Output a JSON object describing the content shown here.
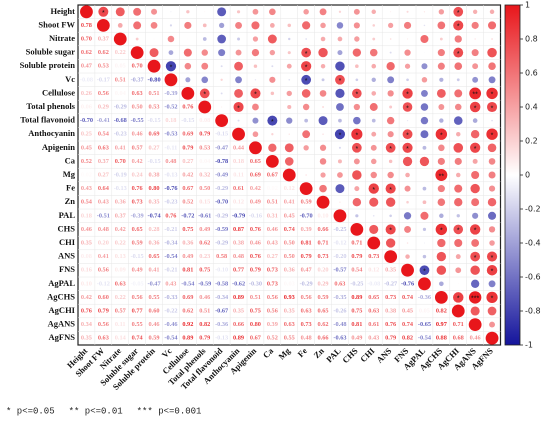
{
  "chart_data": {
    "type": "correlation",
    "variables": [
      "Height",
      "Shoot FW",
      "Nitrate",
      "Soluble sugar",
      "Soluble protein",
      "Vc",
      "Cellulose",
      "Total phenols",
      "Total flavonoid",
      "Anthocyanin",
      "Apigenin",
      "Ca",
      "Mg",
      "Fe",
      "Zn",
      "PAL",
      "CHS",
      "CHI",
      "ANS",
      "FNS",
      "AgPAL",
      "AgCHS",
      "AgCHI",
      "AgANS",
      "AgFNS"
    ],
    "values": [
      [],
      [
        0.78
      ],
      [
        0.7,
        0.37
      ],
      [
        0.62,
        0.62,
        0.22
      ],
      [
        0.47,
        0.53,
        0.05,
        0.7
      ],
      [
        -0.08,
        -0.17,
        0.51,
        -0.37,
        -0.8
      ],
      [
        0.26,
        0.56,
        0.04,
        0.63,
        0.51,
        -0.39
      ],
      [
        0.06,
        0.29,
        -0.29,
        0.5,
        0.53,
        -0.52,
        0.76
      ],
      [
        -0.7,
        -0.41,
        -0.68,
        -0.55,
        -0.15,
        0.18,
        -0.15,
        0.08
      ],
      [
        0.25,
        0.54,
        -0.23,
        0.46,
        0.69,
        -0.53,
        0.69,
        0.79,
        -0.15
      ],
      [
        0.45,
        0.63,
        0.41,
        0.57,
        0.27,
        -0.11,
        0.79,
        0.53,
        -0.47,
        0.44
      ],
      [
        0.52,
        0.37,
        0.7,
        0.42,
        -0.15,
        0.48,
        0.27,
        0.04,
        -0.78,
        0.18,
        0.65
      ],
      [
        0.02,
        0.27,
        -0.19,
        0.24,
        0.38,
        -0.13,
        0.42,
        0.32,
        -0.49,
        0.11,
        0.69,
        0.67
      ],
      [
        0.43,
        0.64,
        -0.13,
        0.76,
        0.8,
        -0.76,
        0.67,
        0.5,
        -0.29,
        0.61,
        0.42,
        0.02,
        0.12
      ],
      [
        0.54,
        0.43,
        0.36,
        0.73,
        0.35,
        -0.23,
        0.52,
        0.15,
        -0.7,
        0.12,
        0.49,
        0.51,
        0.41,
        0.59
      ],
      [
        0.18,
        -0.51,
        0.37,
        -0.39,
        -0.74,
        0.76,
        -0.72,
        -0.61,
        -0.29,
        -0.79,
        -0.16,
        0.31,
        0.45,
        -0.7,
        0.1
      ],
      [
        0.46,
        0.48,
        0.42,
        0.65,
        0.28,
        -0.21,
        0.75,
        0.49,
        -0.59,
        0.87,
        0.76,
        0.46,
        0.74,
        0.39,
        0.66,
        -0.25
      ],
      [
        0.35,
        0.2,
        0.22,
        0.59,
        0.36,
        -0.34,
        0.36,
        0.62,
        -0.29,
        0.38,
        0.46,
        0.43,
        0.5,
        0.81,
        0.71,
        -0.12,
        0.71
      ],
      [
        0.08,
        0.41,
        0.13,
        -0.15,
        0.65,
        -0.54,
        0.49,
        0.23,
        0.58,
        0.48,
        0.76,
        0.27,
        0.5,
        0.79,
        0.73,
        -0.2,
        0.79,
        0.73
      ],
      [
        0.16,
        0.56,
        0.09,
        0.49,
        0.41,
        -0.21,
        0.81,
        0.75,
        -0.1,
        0.77,
        0.79,
        0.73,
        0.36,
        0.47,
        0.2,
        -0.57,
        0.54,
        0.12,
        0.35
      ],
      [
        0.1,
        -0.12,
        0.63,
        -0.05,
        -0.47,
        0.43,
        -0.54,
        -0.59,
        -0.58,
        -0.62,
        -0.3,
        0.73,
        0.03,
        -0.29,
        0.29,
        0.63,
        -0.25,
        -0.08,
        -0.27,
        -0.76
      ],
      [
        0.42,
        0.6,
        0.22,
        0.56,
        0.55,
        -0.33,
        0.69,
        0.46,
        -0.34,
        0.89,
        0.51,
        0.56,
        0.93,
        0.56,
        0.59,
        -0.35,
        0.89,
        0.65,
        0.73,
        0.74,
        -0.36
      ],
      [
        0.76,
        0.79,
        0.57,
        0.77,
        0.6,
        -0.22,
        0.62,
        0.51,
        -0.67,
        0.35,
        0.75,
        0.56,
        0.35,
        0.63,
        0.65,
        -0.26,
        0.75,
        0.63,
        0.38,
        0.45,
        0.05,
        0.82
      ],
      [
        0.34,
        0.56,
        0.11,
        0.55,
        0.46,
        -0.46,
        0.92,
        0.82,
        -0.36,
        0.66,
        0.8,
        0.39,
        0.63,
        0.73,
        0.62,
        -0.48,
        0.81,
        0.61,
        0.76,
        0.74,
        -0.65,
        0.97,
        0.71
      ],
      [
        0.35,
        0.63,
        0.14,
        0.74,
        0.59,
        -0.54,
        0.89,
        0.79,
        -0.13,
        0.89,
        0.67,
        0.52,
        0.55,
        0.48,
        0.66,
        -0.63,
        0.49,
        0.43,
        0.79,
        0.82,
        -0.54,
        0.88,
        0.68,
        0.46
      ]
    ],
    "value_labels": [
      [],
      [
        "0.78"
      ],
      [
        "0.70",
        "0.37"
      ],
      [
        "0.62",
        "0.62",
        "0.22"
      ],
      [
        "0.47",
        "0.53",
        "0.05",
        "0.70"
      ],
      [
        "-0.08",
        "-0.17",
        "0.51",
        "-0.37",
        "-0.80"
      ],
      [
        "0.26",
        "0.56",
        "0.04",
        "0.63",
        "0.51",
        "-0.39"
      ],
      [
        "0.06",
        "0.29",
        "-0.29",
        "0.50",
        "0.53",
        "-0.52",
        "0.76"
      ],
      [
        "-0.70",
        "-0.41",
        "-0.68",
        "-0.55",
        "-0.15",
        "0.18",
        "-0.15",
        "0.08"
      ],
      [
        "0.25",
        "0.54",
        "-0.23",
        "0.46",
        "0.69",
        "-0.53",
        "0.69",
        "0.79",
        "-0.15"
      ],
      [
        "0.45",
        "0.63",
        "0.41",
        "0.57",
        "0.27",
        "-0.11",
        "0.79",
        "0.53",
        "-0.47",
        "0.44"
      ],
      [
        "0.52",
        "0.37",
        "0.70",
        "0.42",
        "-0.15",
        "0.48",
        "0.27",
        "0.04",
        "-0.78",
        "0.18",
        "0.65"
      ],
      [
        "0.02",
        "0.27",
        "-0.19",
        "0.24",
        "0.38",
        "-0.13",
        "0.42",
        "0.32",
        "-0.49",
        "0.11",
        "0.69",
        "0.67"
      ],
      [
        "0.43",
        "0.64",
        "-0.13",
        "0.76",
        "0.80",
        "-0.76",
        "0.67",
        "0.50",
        "-0.29",
        "0.61",
        "0.42",
        "0.02",
        "0.12"
      ],
      [
        "0.54",
        "0.43",
        "0.36",
        "0.73",
        "0.35",
        "-0.23",
        "0.52",
        "0.15",
        "-0.70",
        "0.12",
        "0.49",
        "0.51",
        "0.41",
        "0.59"
      ],
      [
        "0.18",
        "-0.51",
        "0.37",
        "-0.39",
        "-0.74",
        "0.76",
        "-0.72",
        "-0.61",
        "-0.29",
        "-0.79",
        "-0.16",
        "0.31",
        "0.45",
        "-0.70",
        "0.10"
      ],
      [
        "0.46",
        "0.48",
        "0.42",
        "0.65",
        "0.28",
        "-0.21",
        "0.75",
        "0.49",
        "-0.59",
        "0.87",
        "0.76",
        "0.46",
        "0.74",
        "0.39",
        "0.66",
        "-0.25"
      ],
      [
        "0.35",
        "0.20",
        "0.22",
        "0.59",
        "0.36",
        "-0.34",
        "0.36",
        "0.62",
        "-0.29",
        "0.38",
        "0.46",
        "0.43",
        "0.50",
        "0.81",
        "0.71",
        "-0.12",
        "0.71"
      ],
      [
        "0.08",
        "0.41",
        "0.13",
        "-0.15",
        "0.65",
        "-0.54",
        "0.49",
        "0.23",
        "0.58",
        "0.48",
        "0.76",
        "0.27",
        "0.50",
        "0.79",
        "0.73",
        "-0.20",
        "0.79",
        "0.73"
      ],
      [
        "0.16",
        "0.56",
        "0.09",
        "0.49",
        "0.41",
        "-0.21",
        "0.81",
        "0.75",
        "-0.10",
        "0.77",
        "0.79",
        "0.73",
        "0.36",
        "0.47",
        "0.20",
        "-0.57",
        "0.54",
        "0.12",
        "0.35"
      ],
      [
        "0.10",
        "-0.12",
        "0.63",
        "-0.05",
        "-0.47",
        "0.43",
        "-0.54",
        "-0.59",
        "-0.58",
        "-0.62",
        "-0.30",
        "0.73",
        "0.03",
        "-0.29",
        "0.29",
        "0.63",
        "-0.25",
        "-0.08",
        "-0.27",
        "-0.76"
      ],
      [
        "0.42",
        "0.60",
        "0.22",
        "0.56",
        "0.55",
        "-0.33",
        "0.69",
        "0.46",
        "-0.34",
        "0.89",
        "0.51",
        "0.56",
        "0.93",
        "0.56",
        "0.59",
        "-0.35",
        "0.89",
        "0.65",
        "0.73",
        "0.74",
        "-0.36"
      ],
      [
        "0.76",
        "0.79",
        "0.57",
        "0.77",
        "0.60",
        "-0.22",
        "0.62",
        "0.51",
        "-0.67",
        "0.35",
        "0.75",
        "0.56",
        "0.35",
        "0.63",
        "0.65",
        "-0.26",
        "0.75",
        "0.63",
        "0.38",
        "0.45",
        "0.05",
        "0.82"
      ],
      [
        "0.34",
        "0.56",
        "0.11",
        "0.55",
        "0.46",
        "-0.46",
        "0.92",
        "0.82",
        "-0.36",
        "0.66",
        "0.80",
        "0.39",
        "0.63",
        "0.73",
        "0.62",
        "-0.48",
        "0.81",
        "0.61",
        "0.76",
        "0.74",
        "-0.65",
        "0.97",
        "0.71"
      ],
      [
        "0.35",
        "0.63",
        "0.14",
        "0.74",
        "0.59",
        "-0.54",
        "0.89",
        "0.79",
        "-0.13",
        "0.89",
        "0.67",
        "0.52",
        "0.55",
        "0.48",
        "0.66",
        "-0.63",
        "0.49",
        "0.43",
        "0.79",
        "0.82",
        "-0.54",
        "0.88",
        "0.68",
        "0.46"
      ]
    ],
    "diagonal": [
      1,
      1,
      1,
      1,
      1,
      1,
      1,
      1,
      1,
      1,
      1,
      1,
      1,
      1,
      1,
      1,
      1,
      1,
      1,
      1,
      1,
      1,
      1,
      1,
      1
    ],
    "stars": [
      {
        "pair": [
          1,
          0
        ],
        "label": "*"
      },
      {
        "pair": [
          5,
          4
        ],
        "label": "*"
      },
      {
        "pair": [
          7,
          6
        ],
        "label": "*"
      },
      {
        "pair": [
          9,
          7
        ],
        "label": "*"
      },
      {
        "pair": [
          10,
          6
        ],
        "label": "*"
      },
      {
        "pair": [
          11,
          8
        ],
        "label": "*"
      },
      {
        "pair": [
          13,
          3
        ],
        "label": "*"
      },
      {
        "pair": [
          13,
          4
        ],
        "label": "*"
      },
      {
        "pair": [
          13,
          5
        ],
        "label": "*"
      },
      {
        "pair": [
          15,
          5
        ],
        "label": "*"
      },
      {
        "pair": [
          15,
          9
        ],
        "label": "*"
      },
      {
        "pair": [
          16,
          6
        ],
        "label": "*"
      },
      {
        "pair": [
          16,
          9
        ],
        "label": "*"
      },
      {
        "pair": [
          16,
          10
        ],
        "label": "*"
      },
      {
        "pair": [
          17,
          13
        ],
        "label": "*"
      },
      {
        "pair": [
          18,
          10
        ],
        "label": "*"
      },
      {
        "pair": [
          18,
          13
        ],
        "label": "*"
      },
      {
        "pair": [
          18,
          16
        ],
        "label": "*"
      },
      {
        "pair": [
          19,
          6
        ],
        "label": "*"
      },
      {
        "pair": [
          19,
          7
        ],
        "label": "*"
      },
      {
        "pair": [
          19,
          9
        ],
        "label": "*"
      },
      {
        "pair": [
          19,
          10
        ],
        "label": "*"
      },
      {
        "pair": [
          20,
          19
        ],
        "label": "*"
      },
      {
        "pair": [
          21,
          9
        ],
        "label": "*"
      },
      {
        "pair": [
          21,
          12
        ],
        "label": "**"
      },
      {
        "pair": [
          21,
          16
        ],
        "label": "*"
      },
      {
        "pair": [
          22,
          0
        ],
        "label": "*"
      },
      {
        "pair": [
          22,
          1
        ],
        "label": "*"
      },
      {
        "pair": [
          22,
          3
        ],
        "label": "*"
      },
      {
        "pair": [
          22,
          16
        ],
        "label": "*"
      },
      {
        "pair": [
          22,
          21
        ],
        "label": "*"
      },
      {
        "pair": [
          23,
          6
        ],
        "label": "**"
      },
      {
        "pair": [
          23,
          7
        ],
        "label": "*"
      },
      {
        "pair": [
          23,
          10
        ],
        "label": "*"
      },
      {
        "pair": [
          23,
          16
        ],
        "label": "*"
      },
      {
        "pair": [
          23,
          18
        ],
        "label": "*"
      },
      {
        "pair": [
          23,
          21
        ],
        "label": "***"
      },
      {
        "pair": [
          24,
          6
        ],
        "label": "*"
      },
      {
        "pair": [
          24,
          7
        ],
        "label": "*"
      },
      {
        "pair": [
          24,
          9
        ],
        "label": "*"
      },
      {
        "pair": [
          24,
          18
        ],
        "label": "*"
      },
      {
        "pair": [
          24,
          19
        ],
        "label": "*"
      },
      {
        "pair": [
          24,
          21
        ],
        "label": "*"
      }
    ],
    "colors": {
      "negative": "#14149c",
      "zero": "#ffffff",
      "positive": "#e8161b"
    },
    "ylim": [
      -1,
      1
    ],
    "yticks": [
      1,
      0.8,
      0.6,
      0.4,
      0.2,
      0,
      -0.2,
      -0.4,
      -0.6,
      -0.8,
      -1
    ],
    "footnote": [
      "* p<=0.05",
      "** p<=0.01",
      "*** p<=0.001"
    ]
  }
}
